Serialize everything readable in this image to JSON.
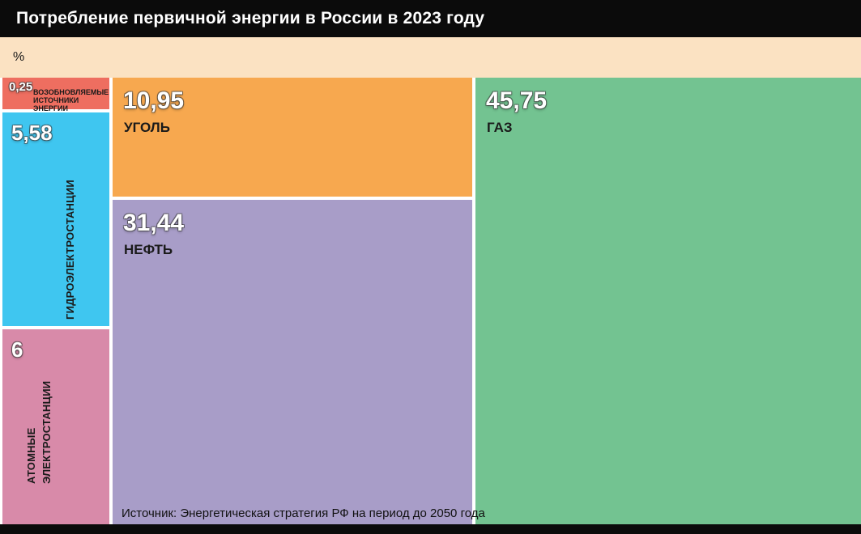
{
  "header": {
    "title": "Потребление первичной энергии в России в 2023 году",
    "unit": "%"
  },
  "footer": {
    "source": "Источник: Энергетическая стратегия РФ на период до 2050 года"
  },
  "colors": {
    "title_bar_bg": "#0b0b0b",
    "unit_bar_bg": "#fbe2c2",
    "bottom_bar_bg": "#0b0b0b",
    "value_text": "#ffffff",
    "label_text": "#1a1a1a"
  },
  "chart_data": {
    "type": "treemap",
    "title": "Потребление первичной энергии в России в 2023 году",
    "unit": "%",
    "source": "Источник: Энергетическая стратегия РФ на период до 2050 года",
    "items": [
      {
        "id": "gas",
        "label": "ГАЗ",
        "value_display": "45,75",
        "value": 45.75,
        "color": "#73c391"
      },
      {
        "id": "oil",
        "label": "НЕФТЬ",
        "value_display": "31,44",
        "value": 31.44,
        "color": "#a89dc8"
      },
      {
        "id": "coal",
        "label": "УГОЛЬ",
        "value_display": "10,95",
        "value": 10.95,
        "color": "#f7a84f"
      },
      {
        "id": "nuclear",
        "label": "АТОМНЫЕ ЭЛЕКТРОСТАНЦИИ",
        "value_display": "6",
        "value": 6,
        "color": "#d88aa9"
      },
      {
        "id": "hydro",
        "label": "ГИДРОЭЛЕКТРОСТАНЦИИ",
        "value_display": "5,58",
        "value": 5.58,
        "color": "#3fc6f0"
      },
      {
        "id": "renewables",
        "label": "ВОЗОБНОВЛЯЕМЫЕ ИСТОЧНИКИ ЭНЕРГИИ",
        "value_display": "0,25",
        "value": 0.25,
        "color": "#ee6e60"
      }
    ]
  }
}
